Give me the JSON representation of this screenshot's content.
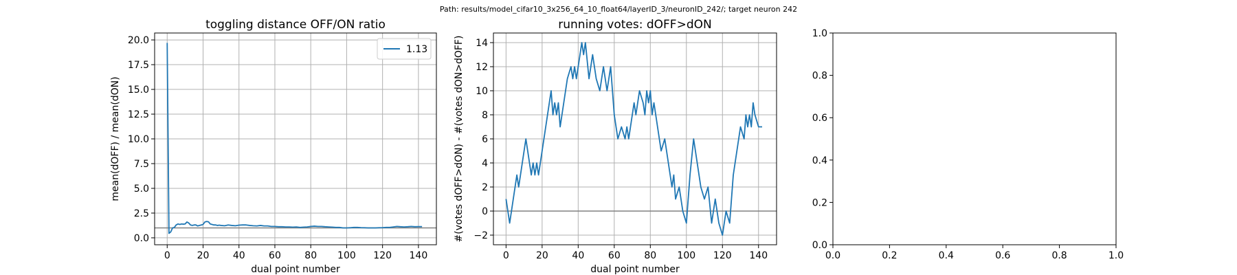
{
  "figure": {
    "suptitle": "Path: results/model_cifar10_3x256_64_10_float64/layerID_3/neuronID_242/; target neuron 242"
  },
  "colors": {
    "series": "#1f77b4",
    "grid": "#b0b0b0",
    "refline": "#808080",
    "axes": "#000000"
  },
  "chart_data": [
    {
      "type": "line",
      "title": "toggling distance OFF/ON ratio",
      "xlabel": "dual point number",
      "ylabel": "mean(dOFF) / mean(dON)",
      "xlim": [
        -7,
        150
      ],
      "ylim": [
        -0.7,
        20.7
      ],
      "xticks": [
        0,
        20,
        40,
        60,
        80,
        100,
        120,
        140
      ],
      "yticks": [
        0.0,
        2.5,
        5.0,
        7.5,
        10.0,
        12.5,
        15.0,
        17.5,
        20.0
      ],
      "ytick_labels": [
        "0.0",
        "2.5",
        "5.0",
        "7.5",
        "10.0",
        "12.5",
        "15.0",
        "17.5",
        "20.0"
      ],
      "grid": true,
      "reference_line": 1.0,
      "legend": {
        "position": "top-right",
        "entries": [
          "1.13"
        ]
      },
      "series": [
        {
          "name": "1.13",
          "x": [
            0,
            1,
            2,
            3,
            4,
            5,
            6,
            7,
            8,
            9,
            10,
            11,
            12,
            13,
            14,
            15,
            16,
            17,
            18,
            19,
            20,
            21,
            22,
            23,
            24,
            25,
            26,
            27,
            28,
            29,
            30,
            32,
            34,
            36,
            38,
            40,
            42,
            44,
            46,
            48,
            50,
            52,
            54,
            56,
            58,
            60,
            62,
            64,
            66,
            68,
            70,
            72,
            74,
            76,
            78,
            80,
            82,
            84,
            86,
            88,
            90,
            92,
            94,
            96,
            98,
            100,
            102,
            104,
            106,
            108,
            110,
            112,
            114,
            116,
            118,
            120,
            122,
            124,
            126,
            128,
            130,
            132,
            134,
            136,
            138,
            140,
            142
          ],
          "y": [
            19.7,
            0.45,
            0.6,
            1.0,
            1.05,
            1.3,
            1.4,
            1.35,
            1.4,
            1.38,
            1.4,
            1.6,
            1.5,
            1.3,
            1.25,
            1.3,
            1.3,
            1.2,
            1.25,
            1.3,
            1.35,
            1.6,
            1.65,
            1.62,
            1.4,
            1.35,
            1.3,
            1.3,
            1.25,
            1.28,
            1.25,
            1.22,
            1.3,
            1.25,
            1.22,
            1.28,
            1.3,
            1.3,
            1.25,
            1.22,
            1.2,
            1.25,
            1.2,
            1.2,
            1.15,
            1.15,
            1.12,
            1.12,
            1.1,
            1.1,
            1.08,
            1.1,
            1.05,
            1.08,
            1.1,
            1.15,
            1.18,
            1.15,
            1.15,
            1.12,
            1.1,
            1.08,
            1.05,
            1.05,
            1.0,
            1.0,
            1.02,
            1.05,
            1.05,
            1.03,
            1.02,
            1.0,
            1.0,
            1.0,
            1.02,
            1.03,
            1.05,
            1.05,
            1.1,
            1.15,
            1.12,
            1.1,
            1.12,
            1.15,
            1.12,
            1.13,
            1.13
          ]
        }
      ]
    },
    {
      "type": "line",
      "title": "running votes: dOFF>dON",
      "xlabel": "dual point number",
      "ylabel": "#(votes dOFF>dON) - #(votes dON>dOFF)",
      "xlim": [
        -7,
        150
      ],
      "ylim": [
        -2.8,
        14.8
      ],
      "xticks": [
        0,
        20,
        40,
        60,
        80,
        100,
        120,
        140
      ],
      "yticks": [
        -2,
        0,
        2,
        4,
        6,
        8,
        10,
        12,
        14
      ],
      "ytick_labels": [
        "−2",
        "0",
        "2",
        "4",
        "6",
        "8",
        "10",
        "12",
        "14"
      ],
      "grid": true,
      "reference_line": 0,
      "series": [
        {
          "x": [
            0,
            2,
            4,
            6,
            7,
            9,
            11,
            13,
            14,
            15,
            16,
            17,
            18,
            19,
            21,
            23,
            25,
            26,
            27,
            28,
            29,
            30,
            32,
            34,
            36,
            37,
            38,
            39,
            40,
            42,
            43,
            44,
            46,
            48,
            50,
            52,
            54,
            56,
            58,
            60,
            62,
            64,
            66,
            67,
            68,
            69,
            70,
            71,
            72,
            74,
            76,
            77,
            78,
            79,
            80,
            81,
            82,
            83,
            84,
            86,
            88,
            90,
            92,
            93,
            94,
            96,
            98,
            100,
            102,
            104,
            106,
            108,
            110,
            112,
            114,
            115,
            116,
            117,
            118,
            120,
            122,
            124,
            126,
            128,
            130,
            132,
            133,
            134,
            135,
            136,
            137,
            138,
            140,
            142
          ],
          "y": [
            1,
            -1,
            1,
            3,
            2,
            4,
            6,
            4,
            3,
            4,
            3,
            4,
            3,
            4,
            6,
            8,
            10,
            8,
            9,
            8,
            9,
            7,
            9,
            11,
            12,
            11,
            12,
            11,
            12,
            14,
            13,
            14,
            11,
            13,
            11,
            10,
            12,
            10,
            12,
            8,
            6,
            7,
            6,
            7,
            6,
            7,
            8,
            9,
            8,
            10,
            9,
            8,
            10,
            9,
            10,
            8,
            9,
            8,
            7,
            5,
            6,
            4,
            2,
            3,
            1,
            2,
            0,
            -1,
            3,
            6,
            4,
            2,
            1,
            2,
            -1,
            0,
            1,
            0,
            -1,
            -2,
            0,
            -1,
            3,
            5,
            7,
            6,
            8,
            7,
            8,
            7,
            9,
            8,
            7,
            7
          ]
        }
      ]
    },
    {
      "type": "line",
      "title": "",
      "xlabel": "",
      "ylabel": "",
      "xlim": [
        0,
        1
      ],
      "ylim": [
        0,
        1
      ],
      "xticks": [
        0.0,
        0.2,
        0.4,
        0.6,
        0.8,
        1.0
      ],
      "yticks": [
        0.0,
        0.2,
        0.4,
        0.6,
        0.8,
        1.0
      ],
      "xtick_labels": [
        "0.0",
        "0.2",
        "0.4",
        "0.6",
        "0.8",
        "1.0"
      ],
      "ytick_labels": [
        "0.0",
        "0.2",
        "0.4",
        "0.6",
        "0.8",
        "1.0"
      ],
      "grid": false,
      "series": []
    }
  ]
}
